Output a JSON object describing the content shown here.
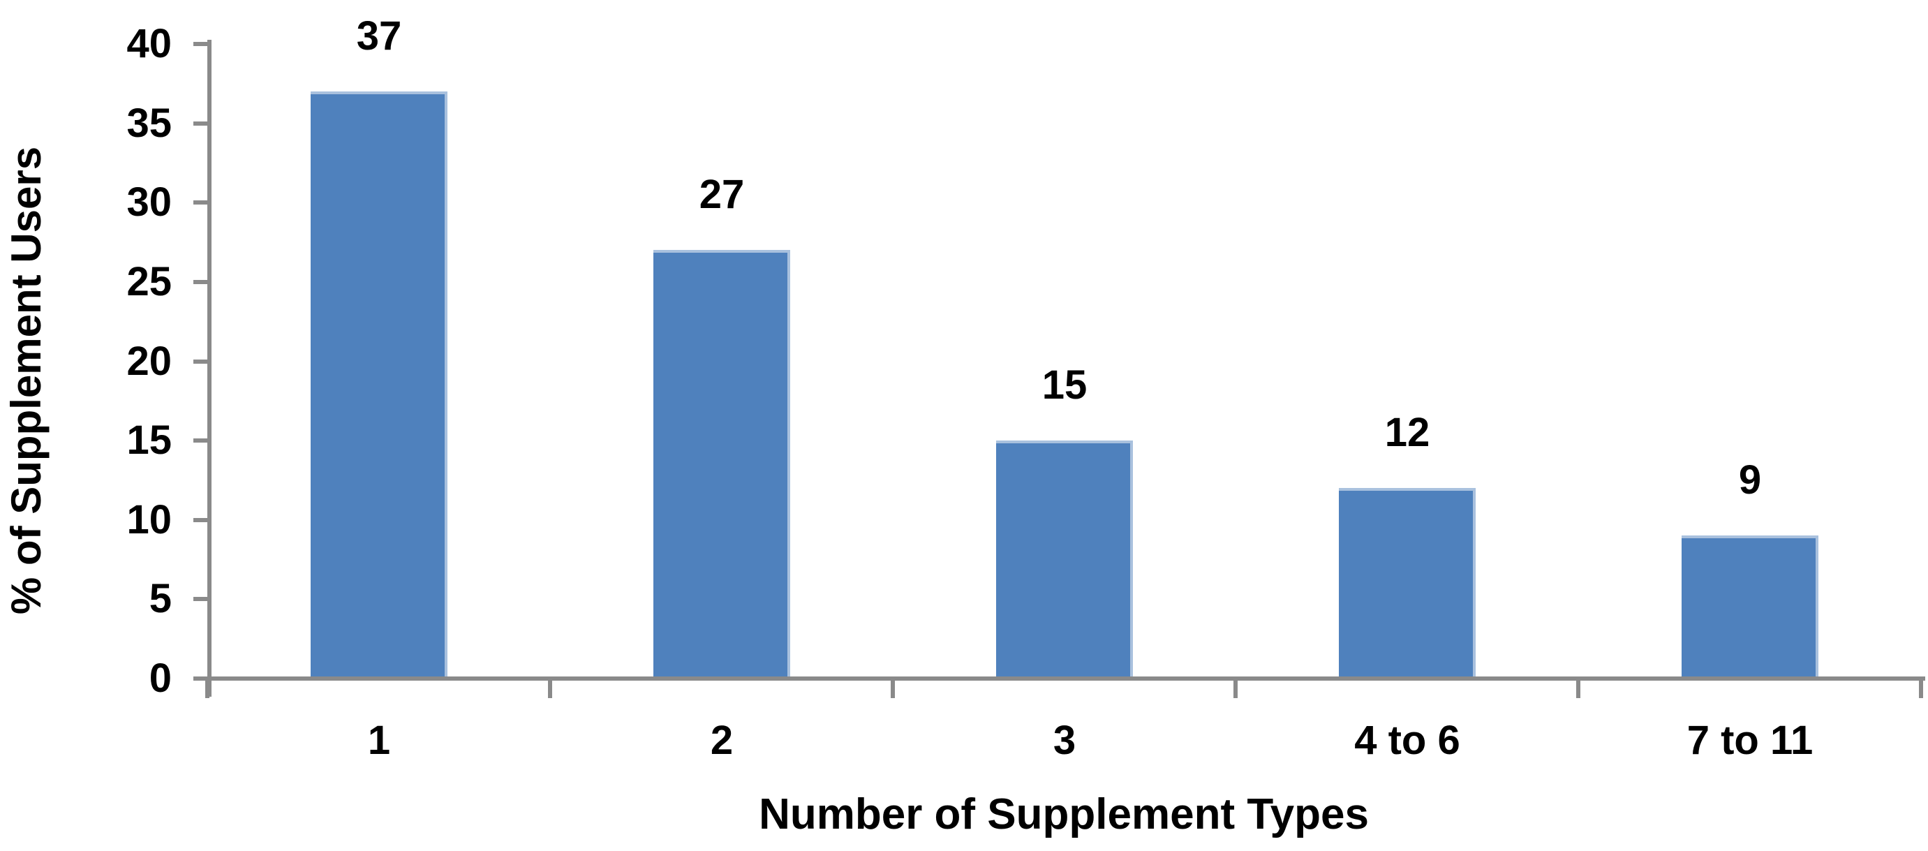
{
  "chart_data": {
    "type": "bar",
    "categories": [
      "1",
      "2",
      "3",
      "4 to 6",
      "7 to 11"
    ],
    "values": [
      37,
      27,
      15,
      12,
      9
    ],
    "data_labels": [
      "37",
      "27",
      "15",
      "12",
      "9"
    ],
    "xlabel": "Number of Supplement Types",
    "ylabel": "% of Supplement Users",
    "ylim": [
      0,
      40
    ],
    "yticks": [
      0,
      5,
      10,
      15,
      20,
      25,
      30,
      35,
      40
    ],
    "grid": false,
    "legend": "none",
    "bar_color": "#4F81BD",
    "bar_edge_color": "#A9C1DE",
    "axis_color": "#8A8A8A",
    "label_color": "#000000",
    "background_color": "#FFFFFF"
  }
}
